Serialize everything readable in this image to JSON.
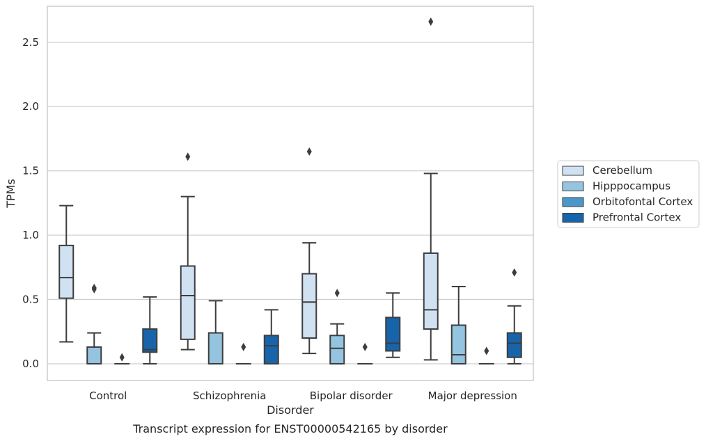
{
  "caption": "Transcript expression for ENST00000542165 by disorder",
  "chart_data": {
    "type": "boxplot",
    "xlabel": "Disorder",
    "ylabel": "TPMs",
    "ylim": [
      -0.13,
      2.78
    ],
    "yticks": [
      "0.0",
      "0.5",
      "1.0",
      "1.5",
      "2.0",
      "2.5"
    ],
    "grid": "horizontal",
    "legend_position": "right",
    "categories": [
      "Control",
      "Schizophrenia",
      "Bipolar disorder",
      "Major depression"
    ],
    "series": [
      {
        "name": "Cerebellum",
        "color": "#d0e1f2",
        "boxes": [
          {
            "whislo": 0.17,
            "q1": 0.51,
            "med": 0.67,
            "q3": 0.92,
            "whishi": 1.23,
            "fliers": []
          },
          {
            "whislo": 0.11,
            "q1": 0.19,
            "med": 0.53,
            "q3": 0.76,
            "whishi": 1.3,
            "fliers": [
              1.61
            ]
          },
          {
            "whislo": 0.08,
            "q1": 0.2,
            "med": 0.48,
            "q3": 0.7,
            "whishi": 0.94,
            "fliers": [
              1.65
            ]
          },
          {
            "whislo": 0.03,
            "q1": 0.27,
            "med": 0.42,
            "q3": 0.86,
            "whishi": 1.48,
            "fliers": [
              2.66
            ]
          }
        ]
      },
      {
        "name": "Hipppocampus",
        "color": "#94c4df",
        "boxes": [
          {
            "whislo": 0.0,
            "q1": 0.0,
            "med": 0.0,
            "q3": 0.13,
            "whishi": 0.24,
            "fliers": [
              0.58,
              0.59
            ]
          },
          {
            "whislo": 0.0,
            "q1": 0.0,
            "med": 0.0,
            "q3": 0.24,
            "whishi": 0.49,
            "fliers": []
          },
          {
            "whislo": 0.0,
            "q1": 0.0,
            "med": 0.12,
            "q3": 0.22,
            "whishi": 0.31,
            "fliers": [
              0.55
            ]
          },
          {
            "whislo": 0.0,
            "q1": 0.0,
            "med": 0.07,
            "q3": 0.3,
            "whishi": 0.6,
            "fliers": []
          }
        ]
      },
      {
        "name": "Orbitofontal Cortex",
        "color": "#4a98c9",
        "boxes": [
          {
            "whislo": 0.0,
            "q1": 0.0,
            "med": 0.0,
            "q3": 0.0,
            "whishi": 0.0,
            "fliers": [
              0.05
            ]
          },
          {
            "whislo": 0.0,
            "q1": 0.0,
            "med": 0.0,
            "q3": 0.0,
            "whishi": 0.0,
            "fliers": [
              0.13
            ]
          },
          {
            "whislo": 0.0,
            "q1": 0.0,
            "med": 0.0,
            "q3": 0.0,
            "whishi": 0.0,
            "fliers": [
              0.13
            ]
          },
          {
            "whislo": 0.0,
            "q1": 0.0,
            "med": 0.0,
            "q3": 0.0,
            "whishi": 0.0,
            "fliers": [
              0.1
            ]
          }
        ]
      },
      {
        "name": "Prefrontal Cortex",
        "color": "#1764ab",
        "boxes": [
          {
            "whislo": 0.0,
            "q1": 0.09,
            "med": 0.11,
            "q3": 0.27,
            "whishi": 0.52,
            "fliers": []
          },
          {
            "whislo": 0.0,
            "q1": 0.0,
            "med": 0.14,
            "q3": 0.22,
            "whishi": 0.42,
            "fliers": []
          },
          {
            "whislo": 0.05,
            "q1": 0.1,
            "med": 0.16,
            "q3": 0.36,
            "whishi": 0.55,
            "fliers": []
          },
          {
            "whislo": 0.0,
            "q1": 0.05,
            "med": 0.16,
            "q3": 0.24,
            "whishi": 0.45,
            "fliers": [
              0.71
            ]
          }
        ]
      }
    ]
  }
}
